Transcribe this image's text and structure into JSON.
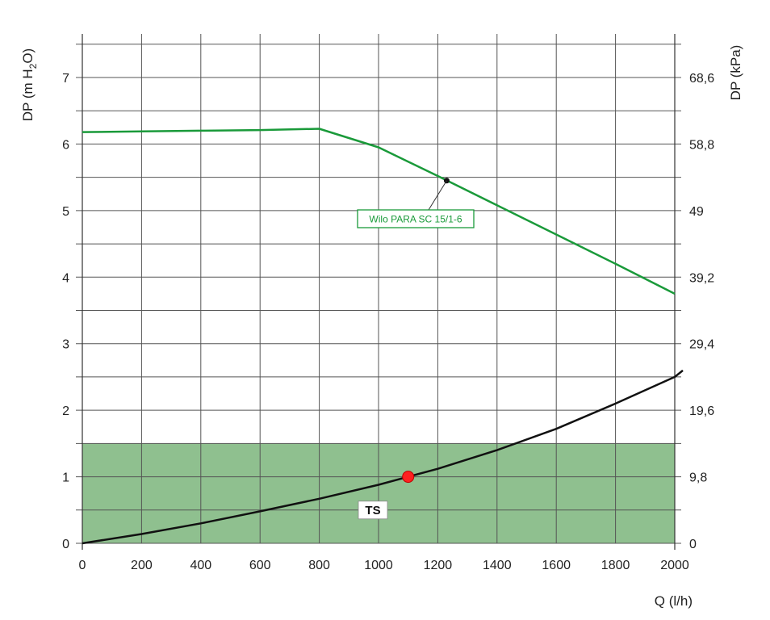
{
  "chart_data": {
    "type": "line",
    "title": "",
    "xlabel": "Q (l/h)",
    "ylabel_left": {
      "prefix": "DP (m H",
      "sub": "2",
      "suffix": "O)"
    },
    "ylabel_right": "DP (kPa)",
    "xlim": [
      0,
      2000
    ],
    "ylim": [
      0,
      7.5
    ],
    "x_ticks": [
      0,
      200,
      400,
      600,
      800,
      1000,
      1200,
      1400,
      1600,
      1800,
      2000
    ],
    "x_tick_labels": [
      "0",
      "200",
      "400",
      "600",
      "800",
      "1000",
      "1200",
      "1400",
      "1600",
      "1800",
      "2000"
    ],
    "y_ticks_left": [
      0,
      1,
      2,
      3,
      4,
      5,
      6,
      7
    ],
    "y_tick_labels_left": [
      "0",
      "1",
      "2",
      "3",
      "4",
      "5",
      "6",
      "7"
    ],
    "y_ticks_right": [
      0,
      1,
      2,
      3,
      4,
      5,
      6,
      7
    ],
    "y_tick_labels_right": [
      "0",
      "9,8",
      "19,6",
      "29,4",
      "39,2",
      "49",
      "58,8",
      "68,6"
    ],
    "grid": true,
    "grid_x_step": 200,
    "grid_y_step": 0.5,
    "region": {
      "x": [
        0,
        2000
      ],
      "y": [
        0,
        1.5
      ],
      "color": "#8fc08f"
    },
    "series": [
      {
        "name": "Wilo PARA SC 15/1-6",
        "color": "#1a9a3a",
        "x": [
          0,
          200,
          400,
          600,
          800,
          1000,
          1200,
          1400,
          1600,
          1800,
          2000
        ],
        "y": [
          6.18,
          6.19,
          6.2,
          6.21,
          6.23,
          5.95,
          5.52,
          5.08,
          4.64,
          4.2,
          3.75
        ]
      },
      {
        "name": "TS",
        "color": "#111111",
        "x": [
          0,
          200,
          400,
          600,
          800,
          1000,
          1100,
          1200,
          1400,
          1600,
          1800,
          2000
        ],
        "y": [
          0,
          0.14,
          0.3,
          0.48,
          0.67,
          0.88,
          1.0,
          1.12,
          1.4,
          1.72,
          2.1,
          2.5
        ]
      }
    ],
    "annotations": [
      {
        "label": "Wilo PARA SC 15/1-6",
        "anchor_x": 1230,
        "anchor_y": 5.45,
        "color": "#1a9a3a"
      },
      {
        "label": "TS",
        "anchor_x": 1000,
        "anchor_y": 0.5,
        "color": "#111111"
      }
    ],
    "operating_point": {
      "x": 1100,
      "y": 1.0,
      "color": "#ff2020"
    }
  }
}
